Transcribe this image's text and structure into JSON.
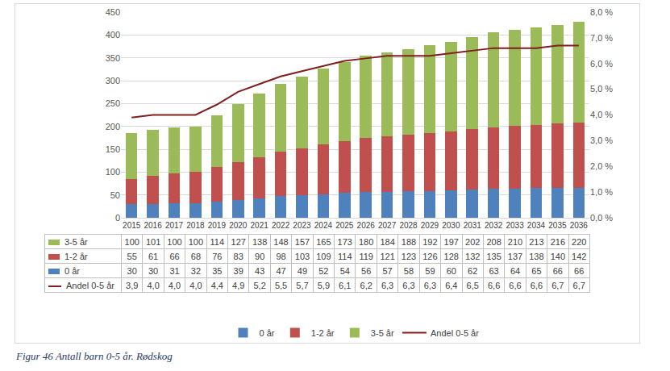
{
  "chart_data": {
    "type": "bar",
    "stacked": true,
    "title": "Figur 46 Antall barn 0-5 år. Rødskog",
    "categories": [
      "2015",
      "2016",
      "2017",
      "2018",
      "2019",
      "2020",
      "2021",
      "2022",
      "2023",
      "2024",
      "2025",
      "2026",
      "2027",
      "2028",
      "2029",
      "2030",
      "2031",
      "2032",
      "2033",
      "2034",
      "2035",
      "2036"
    ],
    "series": [
      {
        "name": "0 år",
        "color": "#4f81bd",
        "values": [
          30,
          30,
          31,
          32,
          35,
          39,
          43,
          47,
          49,
          52,
          54,
          56,
          57,
          58,
          59,
          60,
          62,
          63,
          64,
          65,
          66,
          66
        ]
      },
      {
        "name": "1-2 år",
        "color": "#c0504d",
        "values": [
          55,
          61,
          66,
          68,
          76,
          83,
          90,
          98,
          103,
          109,
          114,
          119,
          121,
          123,
          126,
          128,
          132,
          135,
          137,
          138,
          140,
          142
        ]
      },
      {
        "name": "3-5 år",
        "color": "#9bbb59",
        "values": [
          100,
          101,
          100,
          100,
          114,
          127,
          138,
          148,
          157,
          165,
          173,
          180,
          184,
          188,
          192,
          197,
          202,
          208,
          210,
          213,
          216,
          220
        ]
      },
      {
        "name": "Andel 0-5 år",
        "color": "#7f1f1f",
        "type": "line",
        "axis": "y2",
        "values": [
          3.9,
          4.0,
          4.0,
          4.0,
          4.4,
          4.9,
          5.2,
          5.5,
          5.7,
          5.9,
          6.1,
          6.2,
          6.3,
          6.3,
          6.3,
          6.4,
          6.5,
          6.6,
          6.6,
          6.6,
          6.7,
          6.7
        ],
        "value_labels": [
          "3,9",
          "4,0",
          "4,0",
          "4,0",
          "4,4",
          "4,9",
          "5,2",
          "5,5",
          "5,7",
          "5,9",
          "6,1",
          "6,2",
          "6,3",
          "6,3",
          "6,3",
          "6,4",
          "6,5",
          "6,6",
          "6,6",
          "6,6",
          "6,7",
          "6,7"
        ]
      }
    ],
    "ylim": [
      0,
      450
    ],
    "yticks": [
      0,
      50,
      100,
      150,
      200,
      250,
      300,
      350,
      400,
      450
    ],
    "y2lim": [
      0,
      8
    ],
    "y2ticks": [
      {
        "value": 0,
        "label": "0,0 %"
      },
      {
        "value": 1,
        "label": "1,0 %"
      },
      {
        "value": 2,
        "label": "2,0 %"
      },
      {
        "value": 3,
        "label": "3,0 %"
      },
      {
        "value": 4,
        "label": "4,0 %"
      },
      {
        "value": 5,
        "label": "5,0 %"
      },
      {
        "value": 6,
        "label": "6,0 %"
      },
      {
        "value": 7,
        "label": "7,0 %"
      },
      {
        "value": 8,
        "label": "8,0 %"
      }
    ],
    "grid": true,
    "legend": "bottom"
  }
}
